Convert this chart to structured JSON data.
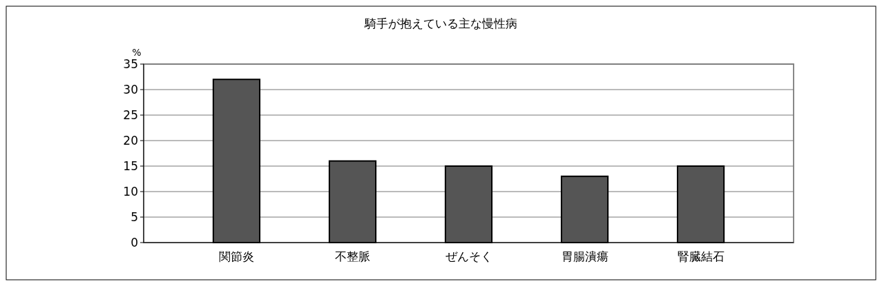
{
  "chart_data": {
    "type": "bar",
    "title": "騎手が抱えている主な慢性病",
    "ylabel": "%",
    "categories": [
      "関節炎",
      "不整脈",
      "ぜんそく",
      "胃腸潰瘍",
      "腎臓結石"
    ],
    "values": [
      32,
      16,
      15,
      13,
      15
    ],
    "color": "#555555",
    "ylim": [
      0,
      35
    ],
    "yticks": [
      0,
      5,
      10,
      15,
      20,
      25,
      30,
      35
    ],
    "grid": "y"
  }
}
